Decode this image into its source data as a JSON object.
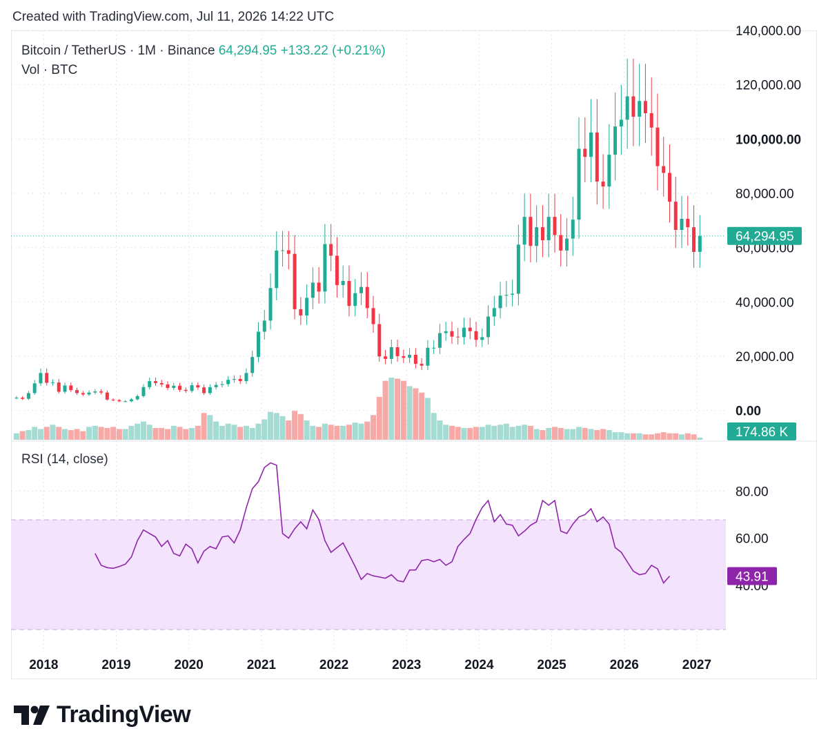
{
  "header": {
    "created": "Created with TradingView.com, Jul 11, 2026 14:22 UTC"
  },
  "legend": {
    "symbol": "Bitcoin / TetherUS · 1M · Binance",
    "price": "64,294.95",
    "change": "+133.22 (+0.21%)",
    "volume": "Vol · BTC"
  },
  "rsi_label": "RSI (14, close)",
  "brand": "TradingView",
  "chart_data": [
    {
      "type": "candlestick",
      "title": "Bitcoin / TetherUS · 1M · Binance",
      "colors": {
        "up": "#22ab94",
        "down": "#f23645",
        "vol_up": "#a4dbd3",
        "vol_down": "#f7a9a7"
      },
      "price_axis": {
        "ticks": [
          0,
          20000,
          40000,
          60000,
          80000,
          100000,
          120000,
          140000
        ],
        "tick_labels": [
          "0.00",
          "20,000.00",
          "40,000.00",
          "60,000.00",
          "80,000.00",
          "100,000.00",
          "120,000.00",
          "140,000.00"
        ],
        "bold_ticks": [
          0,
          100000
        ],
        "ylim": [
          -9000,
          140000
        ]
      },
      "x_axis": {
        "labels": [
          "2018",
          "2019",
          "2020",
          "2021",
          "2022",
          "2023",
          "2024",
          "2025",
          "2026",
          "2027"
        ],
        "values": [
          2018,
          2019,
          2020,
          2021,
          2022,
          2023,
          2024,
          2025,
          2026,
          2027
        ],
        "xlim": [
          2017.55,
          2027.4
        ]
      },
      "last_price": {
        "value": 64294.95,
        "label": "64,294.95"
      },
      "last_volume": {
        "label": "174.86 K"
      },
      "start": "2017-08",
      "closes": [
        4700,
        4300,
        6400,
        10000,
        13800,
        10200,
        10300,
        6900,
        9200,
        7500,
        6400,
        5900,
        6600,
        7000,
        6600,
        4000,
        3800,
        3400,
        3400,
        4100,
        5300,
        8600,
        10800,
        10100,
        9600,
        8300,
        9100,
        7600,
        7200,
        9300,
        8500,
        6400,
        8600,
        9400,
        9700,
        11300,
        11600,
        10800,
        13800,
        19700,
        29000,
        33100,
        45100,
        58900,
        59000,
        57700,
        37300,
        35000,
        41500,
        47100,
        43800,
        61300,
        57000,
        46200,
        47700,
        38500,
        43200,
        45500,
        37700,
        31800,
        19900,
        19000,
        23300,
        20000,
        19400,
        20500,
        17200,
        16500,
        23100,
        23100,
        28500,
        29200,
        27200,
        27000,
        30500,
        29200,
        26000,
        27000,
        34600,
        37700,
        42300,
        42600,
        43000,
        61100,
        71300,
        60600,
        67500,
        62700,
        71300,
        64600,
        58900,
        63300,
        70300,
        96400,
        93400,
        102400,
        84300,
        82500,
        94200,
        104600,
        107100,
        115700,
        108200,
        114000,
        109500,
        104200,
        90000,
        87500,
        76900,
        66500,
        70600,
        67500,
        58400,
        64295
      ],
      "volume_index": [
        6,
        8,
        9,
        12,
        10,
        12,
        14,
        12,
        10,
        9,
        10,
        8,
        12,
        13,
        12,
        11,
        12,
        10,
        10,
        13,
        15,
        17,
        14,
        11,
        11,
        10,
        13,
        12,
        10,
        11,
        13,
        25,
        23,
        17,
        13,
        15,
        14,
        12,
        13,
        11,
        15,
        19,
        26,
        25,
        22,
        18,
        27,
        24,
        18,
        13,
        12,
        15,
        14,
        13,
        13,
        14,
        16,
        15,
        17,
        23,
        40,
        55,
        58,
        57,
        55,
        50,
        48,
        44,
        39,
        25,
        18,
        14,
        13,
        12,
        11,
        11,
        12,
        12,
        14,
        13,
        14,
        15,
        12,
        13,
        14,
        13,
        10,
        9,
        11,
        12,
        11,
        10,
        10,
        12,
        11,
        10,
        9,
        10,
        9,
        7,
        7,
        6,
        6,
        6,
        5,
        5,
        6,
        7,
        6,
        6,
        5,
        6,
        5,
        2
      ]
    },
    {
      "type": "line",
      "title": "RSI (14, close)",
      "color": "#8e24aa",
      "band": {
        "upper": 70,
        "lower": 30,
        "fill": "#f3e3fc"
      },
      "y_axis": {
        "ticks": [
          40,
          60,
          80
        ],
        "tick_labels": [
          "40.00",
          "60.00",
          "80.00"
        ],
        "ylim": [
          13,
          98
        ]
      },
      "x_axis": {
        "xlim": [
          2017.55,
          2027.4
        ]
      },
      "last_value": {
        "value": 43.91,
        "label": "43.91"
      },
      "start": "2018-09",
      "values": [
        53.5,
        48.5,
        47.5,
        47.2,
        48,
        49,
        52,
        59,
        63.5,
        62,
        60.5,
        56.5,
        59,
        53.5,
        52.5,
        57.5,
        55.5,
        49.5,
        54.5,
        56.5,
        55.5,
        60.5,
        61,
        58,
        63.5,
        73,
        81,
        84,
        90,
        92,
        91,
        62,
        60,
        64,
        67,
        64,
        72,
        68,
        59,
        54,
        56,
        58,
        53,
        48,
        42.5,
        45,
        44,
        43.5,
        43,
        44.5,
        42,
        41.5,
        46.5,
        46.5,
        50.5,
        51,
        50,
        51,
        48.5,
        50,
        56.5,
        59.5,
        62,
        68,
        73,
        76,
        67,
        70,
        66,
        65.5,
        61,
        63,
        65.5,
        67,
        76,
        74,
        76,
        63,
        62,
        66,
        69,
        70,
        72.5,
        67,
        69,
        66,
        56,
        54,
        50,
        46,
        44.5,
        45,
        48.5,
        47,
        41,
        43.91
      ]
    }
  ]
}
